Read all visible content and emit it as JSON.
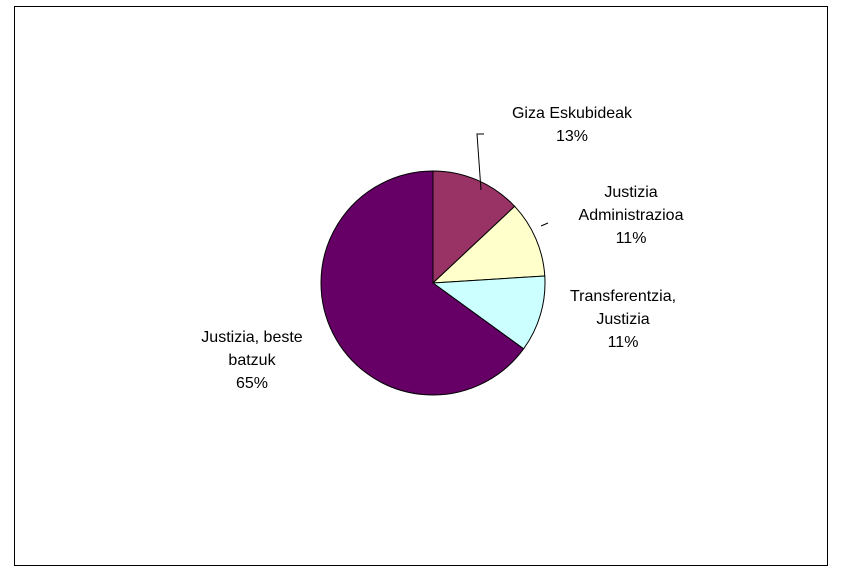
{
  "chart_data": {
    "type": "pie",
    "start_angle_deg": 0,
    "direction": "clockwise",
    "slices": [
      {
        "name": "Giza Eskubideak",
        "label_lines": [
          "Giza Eskubideak"
        ],
        "value": 13,
        "percent_label": "13%",
        "color": "#993366"
      },
      {
        "name": "Justizia Administrazioa",
        "label_lines": [
          "Justizia",
          "Administrazioa"
        ],
        "value": 11,
        "percent_label": "11%",
        "color": "#FFFFCC"
      },
      {
        "name": "Transferentzia, Justizia",
        "label_lines": [
          "Transferentzia,",
          "Justizia"
        ],
        "value": 11,
        "percent_label": "11%",
        "color": "#CCFFFF"
      },
      {
        "name": "Justizia, beste batzuk",
        "label_lines": [
          "Justizia, beste",
          "batzuk"
        ],
        "value": 65,
        "percent_label": "65%",
        "color": "#660066"
      }
    ]
  }
}
